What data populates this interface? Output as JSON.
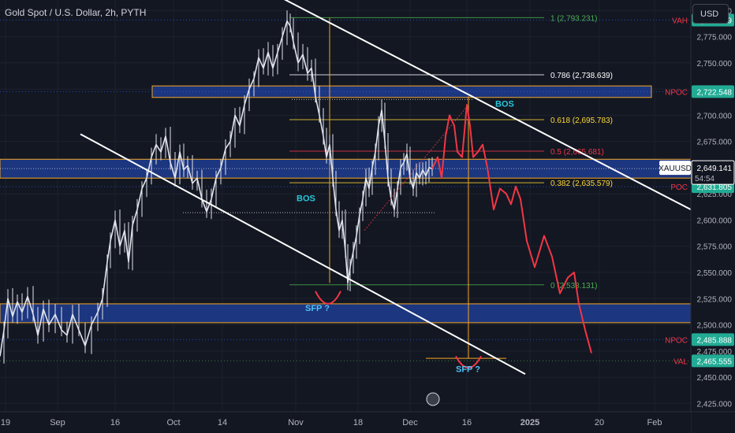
{
  "header": {
    "title": "Gold Spot / U.S. Dollar, 2h, PYTH",
    "currency_button": "USD"
  },
  "colors": {
    "background": "#131722",
    "candle": "#e0e3eb",
    "channel_line": "#ffffff",
    "zone_fill": "#1e3a8a",
    "zone_border": "#f5a623",
    "projection": "#f23645",
    "fib_label": "#fdd835",
    "bos_label": "#26c6da",
    "sfp_label": "#4fc3f7",
    "vah_npoc_poc": "#f23645",
    "val_green": "#4caf50",
    "price_axis_text": "#b2b5be",
    "price_tag_teal": "#22ab94",
    "price_tag_blue": "#2962ff"
  },
  "chart_data": {
    "type": "candlestick",
    "title": "Gold Spot / U.S. Dollar, 2h, PYTH",
    "x_ticks": [
      "19",
      "Sep",
      "16",
      "Oct",
      "14",
      "Nov",
      "18",
      "Dec",
      "16",
      "2025",
      "20",
      "Feb"
    ],
    "y_ticks": [
      2800,
      2775,
      2750,
      2725,
      2700,
      2675,
      2650,
      2625,
      2600,
      2575,
      2550,
      2525,
      2500,
      2475,
      2450,
      2425
    ],
    "ylim": [
      2417,
      2810
    ],
    "price_path": [
      [
        0,
        2470
      ],
      [
        5,
        2495
      ],
      [
        10,
        2525
      ],
      [
        16,
        2508
      ],
      [
        22,
        2522
      ],
      [
        28,
        2512
      ],
      [
        35,
        2527
      ],
      [
        42,
        2510
      ],
      [
        48,
        2490
      ],
      [
        55,
        2515
      ],
      [
        62,
        2500
      ],
      [
        70,
        2510
      ],
      [
        78,
        2495
      ],
      [
        85,
        2490
      ],
      [
        92,
        2510
      ],
      [
        100,
        2495
      ],
      [
        108,
        2480
      ],
      [
        116,
        2500
      ],
      [
        124,
        2512
      ],
      [
        130,
        2525
      ],
      [
        136,
        2560
      ],
      [
        140,
        2580
      ],
      [
        146,
        2600
      ],
      [
        152,
        2575
      ],
      [
        158,
        2590
      ],
      [
        163,
        2560
      ],
      [
        168,
        2595
      ],
      [
        174,
        2610
      ],
      [
        180,
        2630
      ],
      [
        186,
        2640
      ],
      [
        192,
        2660
      ],
      [
        198,
        2672
      ],
      [
        204,
        2665
      ],
      [
        210,
        2680
      ],
      [
        216,
        2655
      ],
      [
        222,
        2640
      ],
      [
        228,
        2665
      ],
      [
        233,
        2648
      ],
      [
        238,
        2652
      ],
      [
        244,
        2635
      ],
      [
        250,
        2640
      ],
      [
        256,
        2620
      ],
      [
        262,
        2608
      ],
      [
        268,
        2620
      ],
      [
        274,
        2640
      ],
      [
        280,
        2650
      ],
      [
        286,
        2668
      ],
      [
        292,
        2675
      ],
      [
        298,
        2700
      ],
      [
        304,
        2690
      ],
      [
        310,
        2710
      ],
      [
        316,
        2725
      ],
      [
        322,
        2735
      ],
      [
        328,
        2755
      ],
      [
        334,
        2745
      ],
      [
        340,
        2760
      ],
      [
        346,
        2745
      ],
      [
        352,
        2760
      ],
      [
        358,
        2775
      ],
      [
        364,
        2790
      ],
      [
        368,
        2785
      ],
      [
        372,
        2770
      ],
      [
        378,
        2750
      ],
      [
        384,
        2758
      ],
      [
        390,
        2740
      ],
      [
        395,
        2745
      ],
      [
        400,
        2718
      ],
      [
        405,
        2700
      ],
      [
        410,
        2680
      ],
      [
        414,
        2660
      ],
      [
        418,
        2672
      ],
      [
        422,
        2640
      ],
      [
        426,
        2610
      ],
      [
        430,
        2590
      ],
      [
        434,
        2600
      ],
      [
        438,
        2570
      ],
      [
        441,
        2540
      ],
      [
        444,
        2555
      ],
      [
        448,
        2570
      ],
      [
        452,
        2585
      ],
      [
        456,
        2605
      ],
      [
        460,
        2620
      ],
      [
        464,
        2640
      ],
      [
        468,
        2630
      ],
      [
        472,
        2650
      ],
      [
        476,
        2665
      ],
      [
        480,
        2690
      ],
      [
        484,
        2705
      ],
      [
        488,
        2675
      ],
      [
        492,
        2640
      ],
      [
        496,
        2620
      ],
      [
        500,
        2610
      ],
      [
        504,
        2630
      ],
      [
        508,
        2650
      ],
      [
        512,
        2655
      ],
      [
        516,
        2663
      ],
      [
        520,
        2640
      ],
      [
        524,
        2630
      ],
      [
        528,
        2645
      ],
      [
        532,
        2640
      ],
      [
        536,
        2648
      ],
      [
        540,
        2642
      ],
      [
        544,
        2650
      ],
      [
        548,
        2649
      ]
    ],
    "projection_path": [
      [
        548,
        2649
      ],
      [
        555,
        2660
      ],
      [
        560,
        2640
      ],
      [
        565,
        2680
      ],
      [
        570,
        2700
      ],
      [
        576,
        2690
      ],
      [
        580,
        2665
      ],
      [
        586,
        2660
      ],
      [
        592,
        2710
      ],
      [
        596,
        2690
      ],
      [
        600,
        2660
      ],
      [
        606,
        2665
      ],
      [
        612,
        2672
      ],
      [
        618,
        2650
      ],
      [
        626,
        2610
      ],
      [
        634,
        2630
      ],
      [
        642,
        2625
      ],
      [
        648,
        2615
      ],
      [
        654,
        2632
      ],
      [
        660,
        2620
      ],
      [
        668,
        2580
      ],
      [
        678,
        2555
      ],
      [
        690,
        2585
      ],
      [
        700,
        2565
      ],
      [
        710,
        2530
      ],
      [
        720,
        2545
      ],
      [
        728,
        2550
      ],
      [
        734,
        2520
      ],
      [
        742,
        2495
      ],
      [
        750,
        2473
      ]
    ],
    "channel_upper": [
      [
        316,
        2828
      ],
      [
        876,
        2610
      ]
    ],
    "channel_lower": [
      [
        102,
        2682
      ],
      [
        666,
        2453
      ]
    ],
    "zones": [
      {
        "from": 2717,
        "to": 2728,
        "x0": 193,
        "x1": 826
      },
      {
        "from": 2640,
        "to": 2658,
        "x0": 0,
        "x1": 876
      },
      {
        "from": 2502,
        "to": 2520,
        "x0": 0,
        "x1": 876
      }
    ],
    "fib_levels": [
      {
        "label": "1 (2,793.231)",
        "value": 2793.231,
        "color": "#4caf50"
      },
      {
        "label": "0.786 (2,738.639)",
        "value": 2738.639,
        "color": "#ffffff"
      },
      {
        "label": "0.618 (2,695.783)",
        "value": 2695.783,
        "color": "#fdd835"
      },
      {
        "label": "0.5 (2,665.681)",
        "value": 2665.681,
        "color": "#f23645"
      },
      {
        "label": "0.382 (2,635.579)",
        "value": 2635.579,
        "color": "#fdd835"
      },
      {
        "label": "0 (2,538.131)",
        "value": 2538.131,
        "color": "#4caf50"
      }
    ],
    "right_labels": [
      {
        "text": "VAH",
        "value": 2790.879,
        "color": "#f23645"
      },
      {
        "text": "NPOC",
        "value": 2722.548,
        "color": "#f23645"
      },
      {
        "text": "POC",
        "value": 2631.805,
        "color": "#f23645"
      },
      {
        "text": "NPOC",
        "value": 2485.888,
        "color": "#f23645"
      },
      {
        "text": "VAL",
        "value": 2465.555,
        "color": "#f23645"
      }
    ],
    "price_tags": [
      {
        "text": "2,790.879",
        "value": 2790.879,
        "bg": "#22ab94"
      },
      {
        "text": "2,722.548",
        "value": 2722.548,
        "bg": "#22ab94"
      },
      {
        "text": "2,631.805",
        "value": 2631.805,
        "bg": "#22ab94"
      },
      {
        "text": "2,485.888",
        "value": 2485.888,
        "bg": "#22ab94"
      },
      {
        "text": "2,465.555",
        "value": 2465.555,
        "bg": "#22ab94"
      }
    ],
    "last_price": {
      "symbol": "XAUUSD",
      "price": "2,649.141",
      "countdown": "54:54",
      "value": 2649.141
    },
    "annotations": [
      {
        "text": "BOS",
        "x": 628,
        "value": 2708,
        "color": "#26c6da"
      },
      {
        "text": "BOS",
        "x": 376,
        "value": 2618,
        "color": "#26c6da"
      },
      {
        "text": "SFP ?",
        "x": 387,
        "value": 2513,
        "color": "#4fc3f7"
      },
      {
        "text": "SFP ?",
        "x": 578,
        "value": 2455,
        "color": "#4fc3f7"
      }
    ]
  }
}
